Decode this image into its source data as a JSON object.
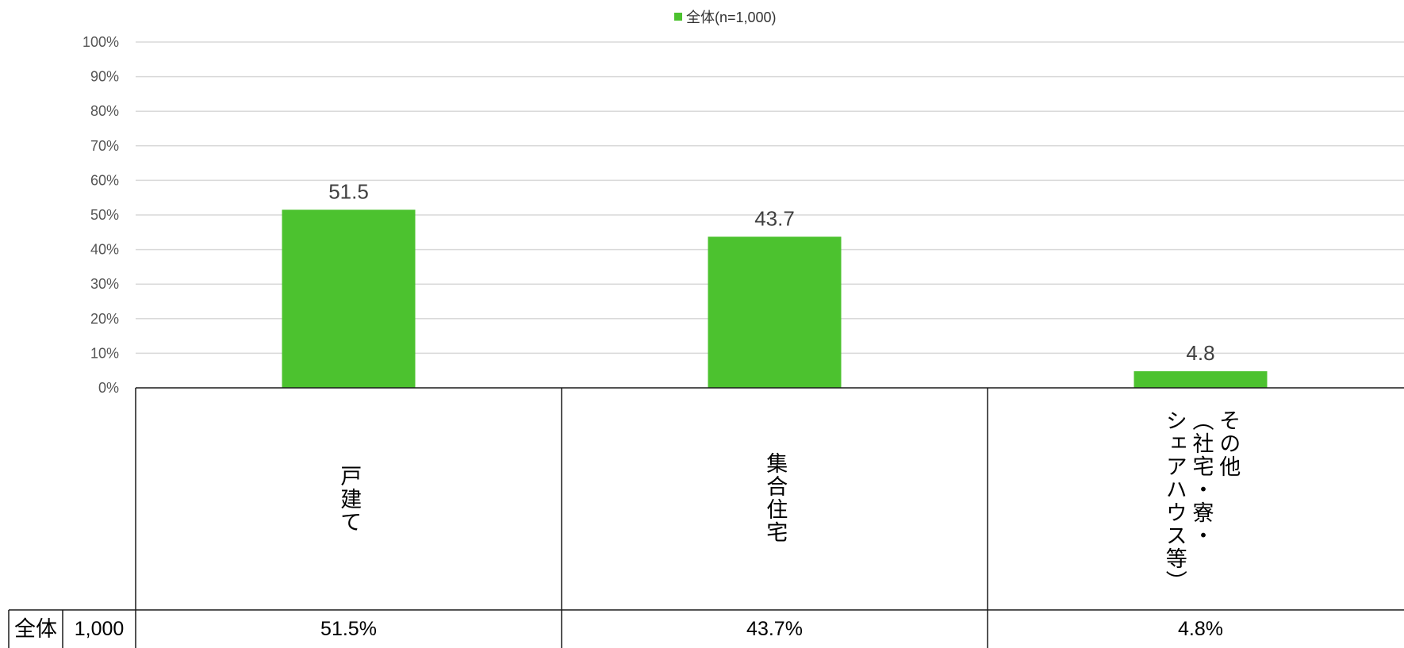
{
  "chart_data": {
    "type": "bar",
    "categories": [
      "戸建て",
      "集合住宅",
      "その他（社宅・寮・シェアハウス等）"
    ],
    "category_lines": [
      [
        "戸建て"
      ],
      [
        "集合住宅"
      ],
      [
        "その他",
        "（社宅・寮・",
        "シェアハウス等）"
      ]
    ],
    "series": [
      {
        "name": "全体(n=1,000)",
        "values": [
          51.5,
          43.7,
          4.8
        ],
        "color": "#4cc22f"
      }
    ],
    "data_labels": [
      "51.5",
      "43.7",
      "4.8"
    ],
    "y_ticks": [
      "0%",
      "10%",
      "20%",
      "30%",
      "40%",
      "50%",
      "60%",
      "70%",
      "80%",
      "90%",
      "100%"
    ],
    "ylim": [
      0,
      100
    ],
    "grid": true,
    "legend_position": "top-center",
    "title": "",
    "xlabel": "",
    "ylabel": "",
    "table": {
      "row_label": "全体",
      "n": "1,000",
      "cells": [
        "51.5%",
        "43.7%",
        "4.8%"
      ]
    }
  }
}
